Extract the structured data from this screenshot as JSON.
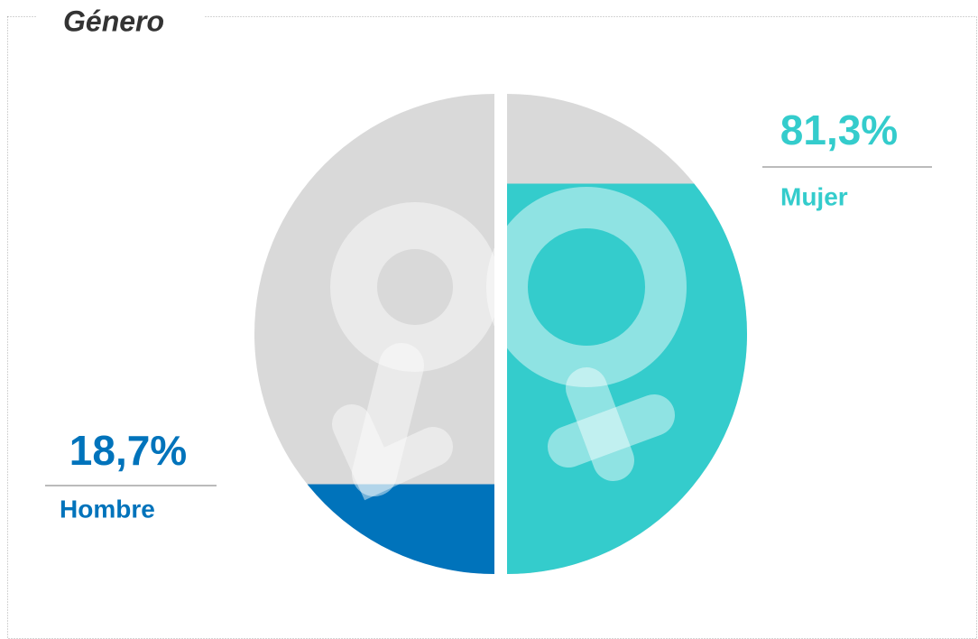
{
  "chart_data": {
    "type": "fill",
    "title": "Género",
    "categories": [
      "Hombre",
      "Mujer"
    ],
    "values": [
      18.7,
      81.3
    ],
    "value_labels": [
      "18,7%",
      "81,3%"
    ],
    "colors": [
      "#0073bb",
      "#34cccc"
    ],
    "background": "#d9d9d9",
    "ylim": [
      0,
      100
    ]
  }
}
